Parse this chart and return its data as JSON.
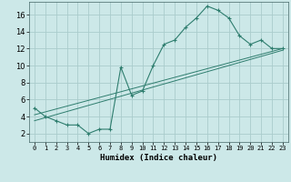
{
  "xlabel": "Humidex (Indice chaleur)",
  "bg_color": "#cce8e8",
  "grid_color": "#aacccc",
  "line_color": "#2e7d6e",
  "xlim": [
    -0.5,
    23.5
  ],
  "ylim": [
    1,
    17.5
  ],
  "yticks": [
    2,
    4,
    6,
    8,
    10,
    12,
    14,
    16
  ],
  "xticks": [
    0,
    1,
    2,
    3,
    4,
    5,
    6,
    7,
    8,
    9,
    10,
    11,
    12,
    13,
    14,
    15,
    16,
    17,
    18,
    19,
    20,
    21,
    22,
    23
  ],
  "curve_x": [
    0,
    1,
    2,
    3,
    4,
    5,
    6,
    7,
    8,
    9,
    10,
    11,
    12,
    13,
    14,
    15,
    16,
    17,
    18,
    19,
    20,
    21,
    22,
    23
  ],
  "curve_y": [
    5,
    4,
    3.5,
    3,
    3,
    2,
    2.5,
    2.5,
    9.8,
    6.5,
    7.0,
    10.0,
    12.5,
    13.0,
    14.5,
    15.6,
    17.0,
    16.5,
    15.6,
    13.5,
    12.5,
    13.0,
    12.0,
    12.0
  ],
  "trend1_x": [
    0,
    23
  ],
  "trend1_y": [
    4.2,
    12.0
  ],
  "trend2_x": [
    0,
    23
  ],
  "trend2_y": [
    3.5,
    11.8
  ],
  "marker": "+"
}
